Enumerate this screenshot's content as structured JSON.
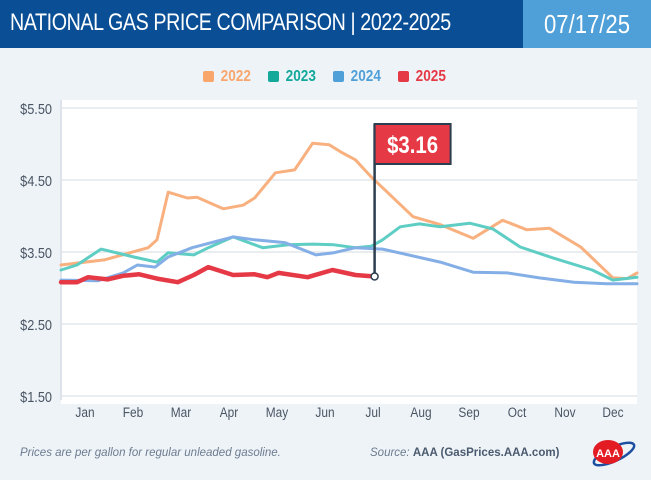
{
  "header": {
    "title": "NATIONAL GAS PRICE COMPARISON",
    "separator": "|",
    "years": "2022-2025",
    "date": "07/17/25"
  },
  "footer": {
    "note": "Prices are per gallon for regular unleaded gasoline.",
    "source_label": "Source:",
    "source": "AAA (GasPrices.AAA.com)",
    "logo_text": "AAA"
  },
  "chart_data": {
    "type": "line",
    "title": "NATIONAL GAS PRICE COMPARISON | 2022-2025",
    "xlabel": "",
    "ylabel": "",
    "ylim": [
      1.5,
      5.5
    ],
    "yticks": [
      "$1.50",
      "$2.50",
      "$3.50",
      "$4.50",
      "$5.50"
    ],
    "ytick_values": [
      1.5,
      2.5,
      3.5,
      4.5,
      5.5
    ],
    "categories": [
      "Jan",
      "Feb",
      "Mar",
      "Apr",
      "May",
      "Jun",
      "Jul",
      "Aug",
      "Sep",
      "Oct",
      "Nov",
      "Dec"
    ],
    "grid": true,
    "legend": "top-center",
    "annotation": {
      "label": "$3.16",
      "series": "2025",
      "date": "07-17",
      "value": 3.16,
      "color": "#e63946"
    },
    "series": [
      {
        "name": "2022",
        "color": "#f9b07f",
        "points": [
          [
            "01-01",
            3.32
          ],
          [
            "01-28",
            3.39
          ],
          [
            "02-23",
            3.56
          ],
          [
            "03-01",
            3.67
          ],
          [
            "03-08",
            4.33
          ],
          [
            "03-20",
            4.25
          ],
          [
            "03-26",
            4.26
          ],
          [
            "04-12",
            4.1
          ],
          [
            "04-24",
            4.15
          ],
          [
            "05-02",
            4.25
          ],
          [
            "05-15",
            4.6
          ],
          [
            "05-27",
            4.64
          ],
          [
            "06-08",
            5.01
          ],
          [
            "06-18",
            4.99
          ],
          [
            "06-25",
            4.89
          ],
          [
            "07-05",
            4.78
          ],
          [
            "07-15",
            4.54
          ],
          [
            "08-11",
            3.99
          ],
          [
            "08-28",
            3.88
          ],
          [
            "09-18",
            3.69
          ],
          [
            "10-07",
            3.94
          ],
          [
            "10-22",
            3.81
          ],
          [
            "11-06",
            3.83
          ],
          [
            "11-25",
            3.57
          ],
          [
            "12-16",
            3.14
          ],
          [
            "12-25",
            3.13
          ],
          [
            "12-31",
            3.21
          ]
        ]
      },
      {
        "name": "2023",
        "color": "#5ecdc4",
        "points": [
          [
            "01-01",
            3.25
          ],
          [
            "01-11",
            3.32
          ],
          [
            "01-26",
            3.54
          ],
          [
            "02-15",
            3.43
          ],
          [
            "03-01",
            3.36
          ],
          [
            "03-08",
            3.49
          ],
          [
            "03-24",
            3.46
          ],
          [
            "04-03",
            3.56
          ],
          [
            "04-18",
            3.71
          ],
          [
            "05-07",
            3.56
          ],
          [
            "05-23",
            3.6
          ],
          [
            "06-08",
            3.61
          ],
          [
            "06-21",
            3.6
          ],
          [
            "07-05",
            3.56
          ],
          [
            "07-15",
            3.58
          ],
          [
            "07-22",
            3.67
          ],
          [
            "08-03",
            3.85
          ],
          [
            "08-15",
            3.89
          ],
          [
            "08-28",
            3.85
          ],
          [
            "09-16",
            3.9
          ],
          [
            "10-01",
            3.82
          ],
          [
            "10-18",
            3.57
          ],
          [
            "11-08",
            3.42
          ],
          [
            "12-03",
            3.25
          ],
          [
            "12-16",
            3.11
          ],
          [
            "12-31",
            3.15
          ]
        ]
      },
      {
        "name": "2024",
        "color": "#84aee6",
        "points": [
          [
            "01-01",
            3.11
          ],
          [
            "01-24",
            3.1
          ],
          [
            "02-09",
            3.21
          ],
          [
            "02-17",
            3.32
          ],
          [
            "02-27",
            3.29
          ],
          [
            "03-08",
            3.43
          ],
          [
            "03-23",
            3.56
          ],
          [
            "04-05",
            3.63
          ],
          [
            "04-18",
            3.71
          ],
          [
            "05-02",
            3.67
          ],
          [
            "05-21",
            3.63
          ],
          [
            "06-10",
            3.46
          ],
          [
            "06-21",
            3.49
          ],
          [
            "07-05",
            3.56
          ],
          [
            "07-22",
            3.54
          ],
          [
            "08-28",
            3.36
          ],
          [
            "09-18",
            3.22
          ],
          [
            "10-10",
            3.21
          ],
          [
            "10-30",
            3.14
          ],
          [
            "11-21",
            3.08
          ],
          [
            "12-12",
            3.06
          ],
          [
            "12-31",
            3.06
          ]
        ]
      },
      {
        "name": "2025",
        "color": "#e63946",
        "points": [
          [
            "01-01",
            3.08
          ],
          [
            "01-11",
            3.08
          ],
          [
            "01-18",
            3.15
          ],
          [
            "01-30",
            3.12
          ],
          [
            "02-09",
            3.17
          ],
          [
            "02-18",
            3.19
          ],
          [
            "03-01",
            3.13
          ],
          [
            "03-14",
            3.08
          ],
          [
            "03-24",
            3.18
          ],
          [
            "04-03",
            3.29
          ],
          [
            "04-18",
            3.18
          ],
          [
            "05-02",
            3.19
          ],
          [
            "05-10",
            3.15
          ],
          [
            "05-17",
            3.21
          ],
          [
            "06-05",
            3.15
          ],
          [
            "06-20",
            3.25
          ],
          [
            "07-05",
            3.18
          ],
          [
            "07-17",
            3.16
          ]
        ]
      }
    ]
  }
}
